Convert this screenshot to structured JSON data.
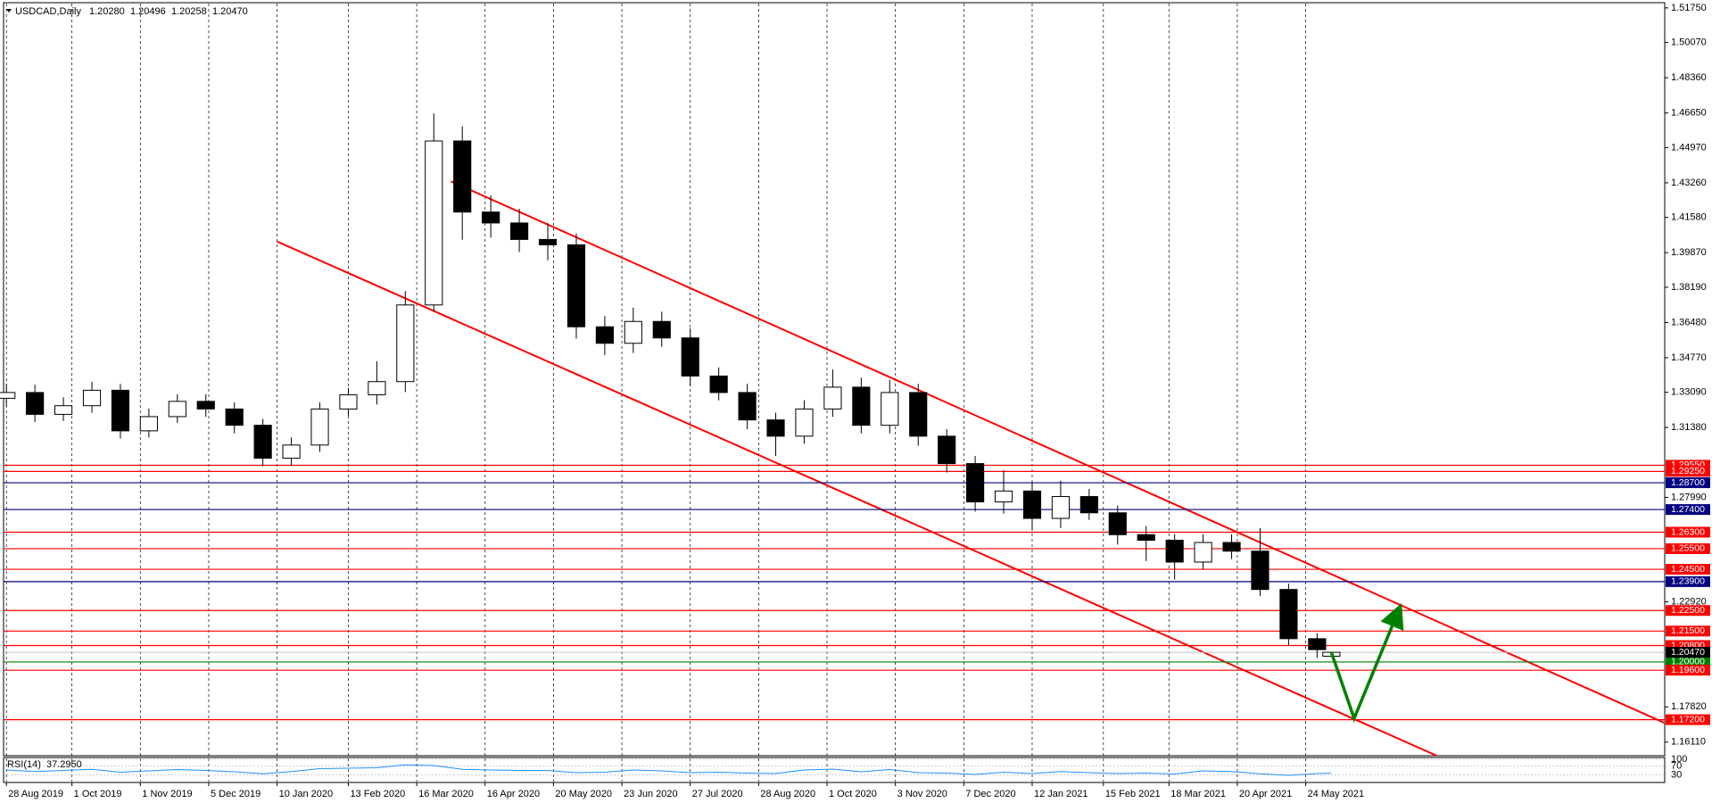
{
  "chart_data": {
    "type": "candlestick",
    "title": "USDCAD,Daily",
    "last_bar_labels": [
      "1.20280",
      "1.20496",
      "1.20258",
      "1.20470"
    ],
    "x": [
      0,
      10,
      20,
      30,
      40,
      50,
      60,
      70,
      80,
      90,
      100,
      110,
      120,
      130,
      140,
      150,
      160,
      170,
      180,
      190,
      200,
      210,
      220,
      230,
      240,
      250,
      260,
      270,
      280,
      290,
      300,
      310,
      320,
      330,
      340,
      350,
      360,
      370,
      380,
      390,
      400,
      410,
      420,
      430,
      440,
      450,
      460,
      465
    ],
    "open": [
      1.328,
      1.3308,
      1.3202,
      1.3244,
      1.3319,
      1.3122,
      1.3191,
      1.3265,
      1.3228,
      1.3149,
      1.2989,
      1.3053,
      1.3228,
      1.3297,
      1.3361,
      1.3733,
      1.4529,
      1.4184,
      1.4131,
      1.4051,
      1.4025,
      1.3627,
      1.3547,
      1.3653,
      1.3573,
      1.3388,
      1.3308,
      1.3175,
      1.3096,
      1.3228,
      1.3334,
      1.3149,
      1.3308,
      1.3096,
      1.2963,
      1.2777,
      1.283,
      1.2697,
      1.2803,
      1.2724,
      1.2618,
      1.2591,
      1.2485,
      1.258,
      1.2538,
      1.2352,
      1.2113,
      1.2028
    ],
    "high": [
      1.335,
      1.3345,
      1.3285,
      1.336,
      1.335,
      1.323,
      1.33,
      1.33,
      1.326,
      1.318,
      1.309,
      1.326,
      1.333,
      1.346,
      1.38,
      1.4662,
      1.46,
      1.4265,
      1.42,
      1.413,
      1.408,
      1.368,
      1.372,
      1.37,
      1.362,
      1.343,
      1.335,
      1.321,
      1.327,
      1.342,
      1.338,
      1.337,
      1.335,
      1.313,
      1.3,
      1.293,
      1.287,
      1.288,
      1.284,
      1.276,
      1.266,
      1.262,
      1.262,
      1.262,
      1.265,
      1.238,
      1.214,
      1.20496
    ],
    "low": [
      1.324,
      1.3165,
      1.317,
      1.321,
      1.3085,
      1.309,
      1.316,
      1.319,
      1.311,
      1.295,
      1.2955,
      1.302,
      1.3195,
      1.325,
      1.331,
      1.37,
      1.405,
      1.406,
      1.399,
      1.395,
      1.357,
      1.349,
      1.35,
      1.353,
      1.334,
      1.327,
      1.313,
      1.3,
      1.306,
      1.319,
      1.311,
      1.311,
      1.305,
      1.292,
      1.273,
      1.272,
      1.264,
      1.265,
      1.269,
      1.257,
      1.249,
      1.24,
      1.245,
      1.25,
      1.232,
      1.208,
      1.202,
      1.20258
    ],
    "close": [
      1.3308,
      1.3202,
      1.3244,
      1.3319,
      1.3122,
      1.3191,
      1.3265,
      1.3228,
      1.3149,
      1.2989,
      1.3053,
      1.3228,
      1.3297,
      1.3361,
      1.3733,
      1.4529,
      1.4184,
      1.4131,
      1.4051,
      1.4025,
      1.3627,
      1.3547,
      1.3653,
      1.3573,
      1.3388,
      1.3308,
      1.3175,
      1.3096,
      1.3228,
      1.3334,
      1.3149,
      1.3308,
      1.3096,
      1.2963,
      1.2777,
      1.283,
      1.2697,
      1.2803,
      1.2724,
      1.2618,
      1.2591,
      1.2485,
      1.258,
      1.2538,
      1.2352,
      1.2113,
      1.206,
      1.2047
    ],
    "colors": {
      "up": "#ffffff",
      "down": "#000000",
      "outline": "#000000"
    },
    "xlim": [
      -1,
      582
    ],
    "xticks": [
      {
        "value": 0,
        "label": "28 Aug 2019"
      },
      {
        "value": 23,
        "label": "1 Oct 2019"
      },
      {
        "value": 47,
        "label": "1 Nov 2019"
      },
      {
        "value": 71,
        "label": "5 Dec 2019"
      },
      {
        "value": 95,
        "label": "10 Jan 2020"
      },
      {
        "value": 120,
        "label": "13 Feb 2020"
      },
      {
        "value": 144,
        "label": "16 Mar 2020"
      },
      {
        "value": 168,
        "label": "16 Apr 2020"
      },
      {
        "value": 192,
        "label": "20 May 2020"
      },
      {
        "value": 216,
        "label": "23 Jun 2020"
      },
      {
        "value": 240,
        "label": "27 Jul 2020"
      },
      {
        "value": 264,
        "label": "28 Aug 2020"
      },
      {
        "value": 288,
        "label": "1 Oct 2020"
      },
      {
        "value": 312,
        "label": "3 Nov 2020"
      },
      {
        "value": 336,
        "label": "7 Dec 2020"
      },
      {
        "value": 360,
        "label": "12 Jan 2021"
      },
      {
        "value": 385,
        "label": "15 Feb 2021"
      },
      {
        "value": 408,
        "label": "18 Mar 2021"
      },
      {
        "value": 432,
        "label": "20 Apr 2021"
      },
      {
        "value": 456,
        "label": "24 May 2021"
      }
    ],
    "ylim": [
      1.1545,
      1.5196
    ],
    "yticks": [
      {
        "value": 1.5175,
        "label": "1.51750"
      },
      {
        "value": 1.5007,
        "label": "1.50070"
      },
      {
        "value": 1.4836,
        "label": "1.48360"
      },
      {
        "value": 1.4665,
        "label": "1.46650"
      },
      {
        "value": 1.4497,
        "label": "1.44970"
      },
      {
        "value": 1.4326,
        "label": "1.43260"
      },
      {
        "value": 1.4158,
        "label": "1.41580"
      },
      {
        "value": 1.3987,
        "label": "1.39870"
      },
      {
        "value": 1.3819,
        "label": "1.38190"
      },
      {
        "value": 1.3648,
        "label": "1.36480"
      },
      {
        "value": 1.3477,
        "label": "1.34770"
      },
      {
        "value": 1.3309,
        "label": "1.33090"
      },
      {
        "value": 1.3138,
        "label": "1.31380"
      },
      {
        "value": 1.2799,
        "label": "1.27990"
      },
      {
        "value": 1.2292,
        "label": "1.22920"
      },
      {
        "value": 1.1782,
        "label": "1.17820"
      },
      {
        "value": 1.1611,
        "label": "1.16110"
      }
    ],
    "grid": true,
    "levels": [
      {
        "value": 1.2955,
        "label": "1.29550",
        "color": "#ff0000"
      },
      {
        "value": 1.2925,
        "label": "1.29250",
        "color": "#ff0000"
      },
      {
        "value": 1.287,
        "label": "1.28700",
        "color": "#000080"
      },
      {
        "value": 1.274,
        "label": "1.27400",
        "color": "#000080"
      },
      {
        "value": 1.263,
        "label": "1.26300",
        "color": "#ff0000"
      },
      {
        "value": 1.255,
        "label": "1.25500",
        "color": "#ff0000"
      },
      {
        "value": 1.245,
        "label": "1.24500",
        "color": "#ff0000"
      },
      {
        "value": 1.239,
        "label": "1.23900",
        "color": "#000080"
      },
      {
        "value": 1.225,
        "label": "1.22500",
        "color": "#ff0000"
      },
      {
        "value": 1.215,
        "label": "1.21500",
        "color": "#ff0000"
      },
      {
        "value": 1.208,
        "label": "1.20800",
        "color": "#ff0000"
      },
      {
        "value": 1.2,
        "label": "1.20000",
        "color": "#008000"
      },
      {
        "value": 1.196,
        "label": "1.19600",
        "color": "#ff0000"
      },
      {
        "value": 1.172,
        "label": "1.17200",
        "color": "#ff0000"
      }
    ],
    "current_price": {
      "value": 1.2047,
      "label": "1.20470",
      "color": "#000000"
    },
    "trendlines": [
      {
        "x": [
          156,
          582
        ],
        "y": [
          1.4333,
          1.1704
        ],
        "color": "#ff0000"
      },
      {
        "x": [
          95,
          502
        ],
        "y": [
          1.4041,
          1.1545
        ],
        "color": "#ff0000"
      }
    ],
    "arrow": {
      "x": [
        465,
        473,
        488
      ],
      "y": [
        1.2047,
        1.1726,
        1.223
      ],
      "color": "#008000"
    },
    "rsi": {
      "title": "RSI(14)",
      "last": {
        "value": 37.295,
        "label": "37.2950"
      },
      "color": "#1e90ff",
      "values": [
        52,
        45,
        50,
        55,
        42,
        48,
        54,
        50,
        44,
        35,
        45,
        58,
        60,
        62,
        75,
        72,
        55,
        52,
        50,
        50,
        40,
        42,
        52,
        48,
        40,
        42,
        38,
        36,
        52,
        56,
        44,
        54,
        40,
        38,
        32,
        42,
        36,
        45,
        40,
        36,
        38,
        34,
        48,
        45,
        35,
        28,
        36,
        37.295
      ],
      "ylim": [
        0,
        100
      ],
      "yticks": [
        100,
        70,
        30
      ]
    }
  }
}
